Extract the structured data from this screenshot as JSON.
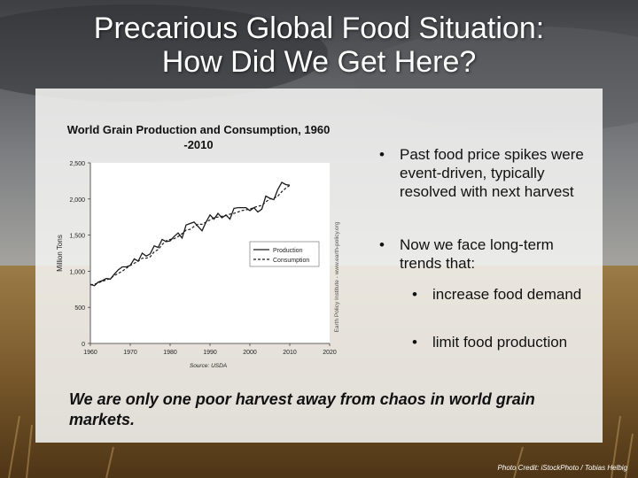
{
  "slide": {
    "title_line1": "Precarious Global Food Situation:",
    "title_line2": "How Did We Get Here?",
    "bullets": [
      {
        "text": "Past food price spikes were event-driven, typically resolved with next harvest"
      },
      {
        "text": "Now we face long-term trends that:"
      }
    ],
    "sub_bullets": [
      {
        "text": "increase food demand"
      },
      {
        "text": "limit food production"
      }
    ],
    "bullet_glyph": "•",
    "tagline": "We are only one poor harvest away from chaos in world grain markets.",
    "credit": "Photo Credit: iStockPhoto / Tobias Helbig"
  },
  "chart_data": {
    "type": "line",
    "title": "World Grain Production and Consumption, 1960 -2010",
    "ylabel": "Million Tons",
    "xlim": [
      1960,
      2020
    ],
    "ylim": [
      0,
      2500
    ],
    "xticks": [
      1960,
      1970,
      1980,
      1990,
      2000,
      2010,
      2020
    ],
    "yticks": [
      0,
      500,
      1000,
      1500,
      2000,
      2500
    ],
    "ytick_labels": [
      "0",
      "500",
      "1,000",
      "1,500",
      "2,000",
      "2,500"
    ],
    "source": "Source: USDA",
    "side_text": "Earth Policy Institute - www.earth-policy.org",
    "legend_position": "right-center",
    "x": [
      1960,
      1961,
      1962,
      1963,
      1964,
      1965,
      1966,
      1967,
      1968,
      1969,
      1970,
      1971,
      1972,
      1973,
      1974,
      1975,
      1976,
      1977,
      1978,
      1979,
      1980,
      1981,
      1982,
      1983,
      1984,
      1985,
      1986,
      1987,
      1988,
      1989,
      1990,
      1991,
      1992,
      1993,
      1994,
      1995,
      1996,
      1997,
      1998,
      1999,
      2000,
      2001,
      2002,
      2003,
      2004,
      2005,
      2006,
      2007,
      2008,
      2009,
      2010
    ],
    "series": [
      {
        "name": "Production",
        "style": "solid",
        "values": [
          820,
          800,
          850,
          870,
          900,
          890,
          960,
          1020,
          1060,
          1060,
          1080,
          1170,
          1140,
          1250,
          1210,
          1240,
          1350,
          1330,
          1440,
          1410,
          1420,
          1480,
          1530,
          1460,
          1640,
          1660,
          1680,
          1620,
          1560,
          1680,
          1780,
          1720,
          1800,
          1740,
          1780,
          1720,
          1870,
          1880,
          1880,
          1880,
          1840,
          1880,
          1820,
          1860,
          2040,
          2010,
          1990,
          2130,
          2230,
          2200,
          2190
        ]
      },
      {
        "name": "Consumption",
        "style": "dashed",
        "values": [
          810,
          820,
          840,
          860,
          880,
          900,
          940,
          970,
          1000,
          1040,
          1080,
          1110,
          1140,
          1180,
          1180,
          1200,
          1270,
          1300,
          1370,
          1420,
          1440,
          1450,
          1480,
          1520,
          1570,
          1580,
          1620,
          1650,
          1650,
          1680,
          1710,
          1740,
          1750,
          1760,
          1770,
          1790,
          1800,
          1820,
          1840,
          1850,
          1860,
          1880,
          1900,
          1910,
          1960,
          2000,
          2010,
          2040,
          2100,
          2150,
          2190
        ]
      }
    ]
  },
  "colors": {
    "title": "#ffffff",
    "panel": "#f4f4f2",
    "text": "#111111",
    "line": "#1a1a1a"
  }
}
